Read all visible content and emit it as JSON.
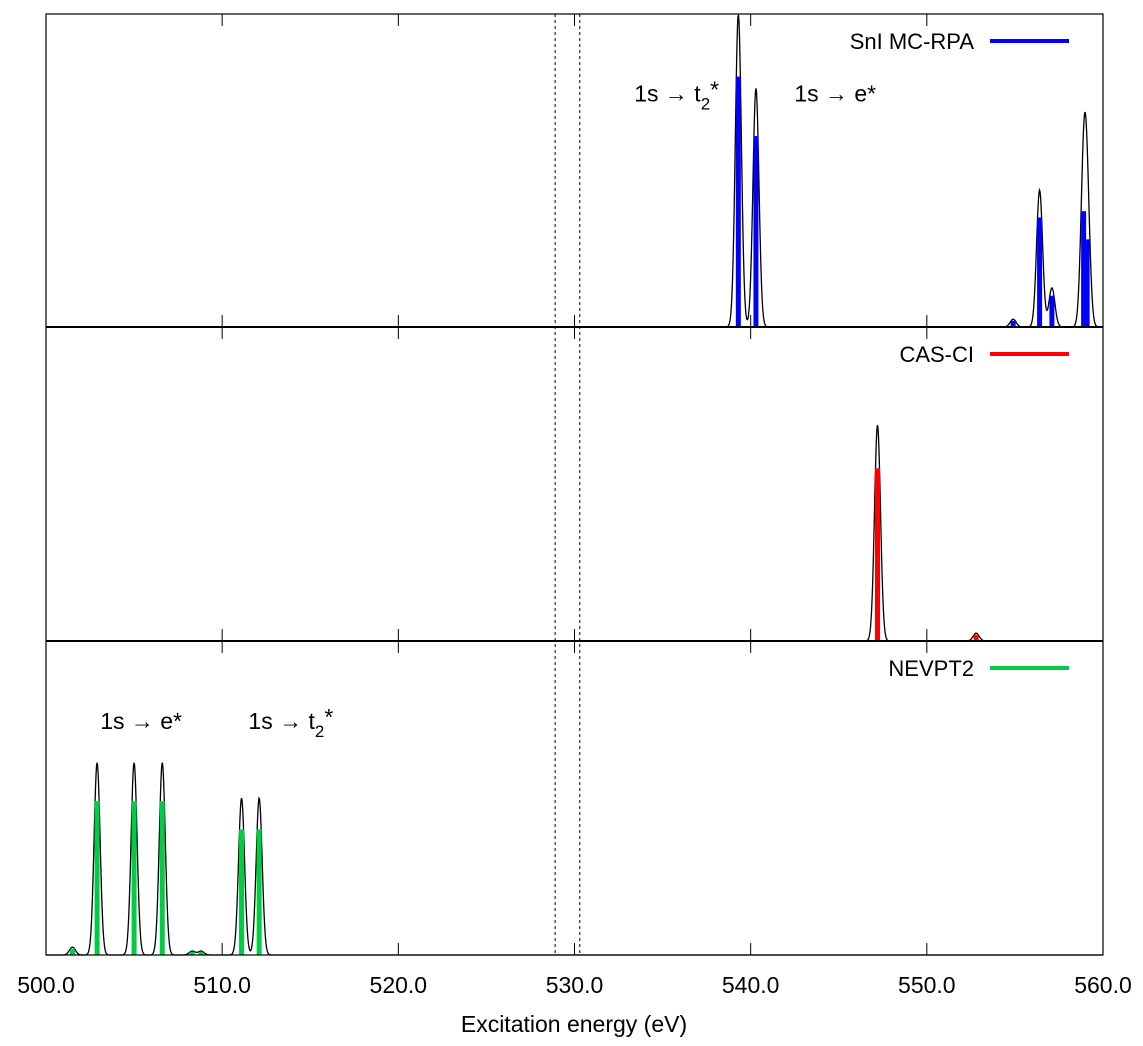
{
  "chart_data": {
    "type": "line",
    "xlabel": "Excitation energy (eV)",
    "xlim": [
      500,
      560
    ],
    "xticks": [
      500,
      510,
      520,
      530,
      540,
      550,
      560
    ],
    "xtick_labels": [
      "500.0",
      "510.0",
      "520.0",
      "530.0",
      "540.0",
      "550.0",
      "560.0"
    ],
    "reference_lines": [
      528.9,
      530.3
    ],
    "grid": false,
    "legend_position": "top-right",
    "panels": [
      {
        "name": "SnI MC-RPA",
        "color": "#0000ff",
        "ylim": [
          0,
          1
        ],
        "sticks": [
          {
            "x": 539.3,
            "y": 0.8
          },
          {
            "x": 540.3,
            "y": 0.61
          },
          {
            "x": 554.9,
            "y": 0.02
          },
          {
            "x": 556.4,
            "y": 0.35
          },
          {
            "x": 557.1,
            "y": 0.1
          },
          {
            "x": 558.9,
            "y": 0.37
          },
          {
            "x": 559.1,
            "y": 0.28
          }
        ],
        "annotations": [
          {
            "text": "1s → t",
            "sub": "2",
            "suffix": "*",
            "x": 535.8,
            "y": 0.72
          },
          {
            "text": "1s → e*",
            "x": 544.8,
            "y": 0.72
          }
        ]
      },
      {
        "name": "CAS-CI",
        "color": "#ff0000",
        "ylim": [
          0,
          1
        ],
        "sticks": [
          {
            "x": 547.2,
            "y": 0.55
          },
          {
            "x": 552.8,
            "y": 0.02
          }
        ],
        "annotations": []
      },
      {
        "name": "NEVPT2",
        "color": "#00cc44",
        "ylim": [
          0,
          1
        ],
        "sticks": [
          {
            "x": 501.5,
            "y": 0.02
          },
          {
            "x": 502.9,
            "y": 0.49
          },
          {
            "x": 505.0,
            "y": 0.49
          },
          {
            "x": 506.6,
            "y": 0.49
          },
          {
            "x": 508.3,
            "y": 0.01
          },
          {
            "x": 508.8,
            "y": 0.01
          },
          {
            "x": 511.1,
            "y": 0.4
          },
          {
            "x": 512.1,
            "y": 0.4
          }
        ],
        "annotations": [
          {
            "text": "1s → e*",
            "x": 505.4,
            "y": 0.72
          },
          {
            "text": "1s → t",
            "sub": "2",
            "suffix": "*",
            "x": 513.9,
            "y": 0.72
          }
        ]
      }
    ]
  }
}
